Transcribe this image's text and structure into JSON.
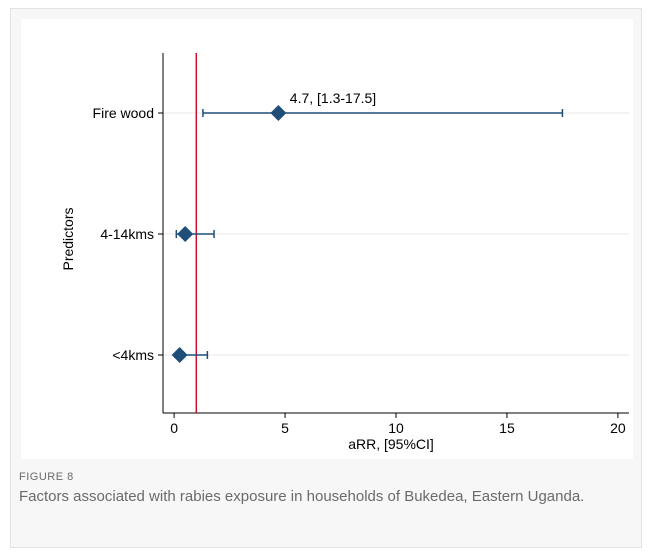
{
  "figure": {
    "label": "FIGURE 8",
    "caption": "Factors associated with rabies exposure in households of Bukedea, Eastern Uganda."
  },
  "colors": {
    "marker": "#1f4e79",
    "ci_line": "#1f4e79",
    "reference_line": "#c8102e",
    "grid": "#e8e8e8",
    "axis": "#000000"
  },
  "chart_data": {
    "type": "scatter",
    "subtype": "forest-plot",
    "xlabel": "aRR, [95%CI]",
    "ylabel": "Predictors",
    "xlim": [
      -0.5,
      20.5
    ],
    "xticks": [
      0,
      5,
      10,
      15,
      20
    ],
    "reference_value": 1,
    "grid": "horizontal",
    "series": [
      {
        "categories": [
          "Fire wood",
          "4-14kms",
          "<4kms"
        ],
        "estimate": [
          4.7,
          0.5,
          0.25
        ],
        "ci_low": [
          1.3,
          0.1,
          0.1
        ],
        "ci_high": [
          17.5,
          1.8,
          1.5
        ]
      }
    ],
    "annotations": [
      {
        "category": "Fire wood",
        "text": "4.7, [1.3-17.5]"
      }
    ]
  }
}
